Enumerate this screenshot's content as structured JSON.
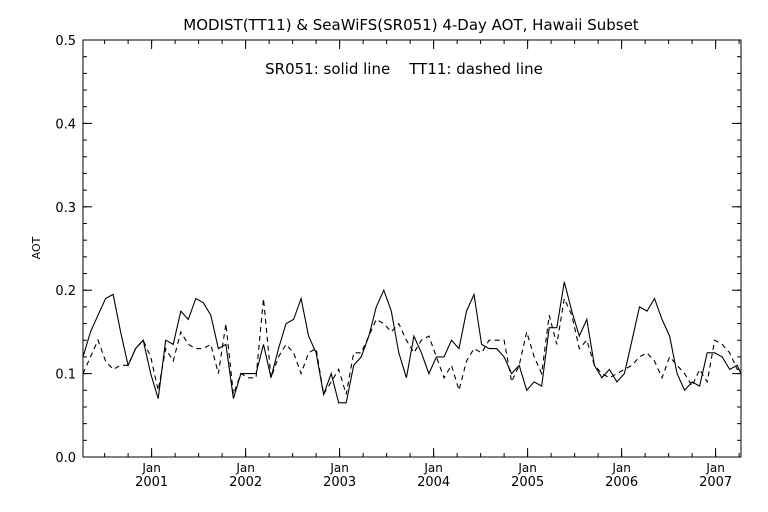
{
  "chart_data": {
    "type": "line",
    "title": "MODIST(TT11) & SeaWiFS(SR051) 4-Day AOT, Hawaii Subset",
    "annotation": "SR051: solid line    TT11: dashed line",
    "ylabel": "AOT",
    "xlabel": "",
    "ylim": [
      0.0,
      0.5
    ],
    "xlim": [
      2000.27,
      2007.27
    ],
    "yticks": [
      "0.0",
      "0.1",
      "0.2",
      "0.3",
      "0.4",
      "0.5"
    ],
    "xticks": [
      {
        "month": "Jan",
        "year": "2001"
      },
      {
        "month": "Jan",
        "year": "2002"
      },
      {
        "month": "Jan",
        "year": "2003"
      },
      {
        "month": "Jan",
        "year": "2004"
      },
      {
        "month": "Jan",
        "year": "2005"
      },
      {
        "month": "Jan",
        "year": "2006"
      },
      {
        "month": "Jan",
        "year": "2007"
      }
    ],
    "grid": false,
    "legend": "none",
    "series": [
      {
        "style": "solid",
        "color": "#000000",
        "x": [
          2000.27,
          2000.35,
          2000.43,
          2000.51,
          2000.59,
          2000.67,
          2000.75,
          2000.83,
          2000.91,
          2000.99,
          2001.07,
          2001.15,
          2001.23,
          2001.31,
          2001.39,
          2001.47,
          2001.55,
          2001.63,
          2001.71,
          2001.79,
          2001.87,
          2001.95,
          2002.03,
          2002.11,
          2002.19,
          2002.27,
          2002.35,
          2002.43,
          2002.51,
          2002.59,
          2002.67,
          2002.75,
          2002.83,
          2002.91,
          2002.99,
          2003.07,
          2003.15,
          2003.23,
          2003.31,
          2003.39,
          2003.47,
          2003.55,
          2003.63,
          2003.71,
          2003.79,
          2003.87,
          2003.95,
          2004.03,
          2004.11,
          2004.19,
          2004.27,
          2004.35,
          2004.43,
          2004.51,
          2004.59,
          2004.67,
          2004.75,
          2004.83,
          2004.91,
          2004.99,
          2005.07,
          2005.15,
          2005.23,
          2005.31,
          2005.39,
          2005.47,
          2005.55,
          2005.63,
          2005.71,
          2005.79,
          2005.87,
          2005.95,
          2006.03,
          2006.11,
          2006.19,
          2006.27,
          2006.35,
          2006.43,
          2006.51,
          2006.59,
          2006.67,
          2006.75,
          2006.83,
          2006.91,
          2006.99,
          2007.07,
          2007.15,
          2007.23,
          2007.27
        ],
        "y": [
          0.12,
          0.15,
          0.17,
          0.19,
          0.195,
          0.15,
          0.11,
          0.13,
          0.14,
          0.1,
          0.07,
          0.14,
          0.135,
          0.175,
          0.165,
          0.19,
          0.185,
          0.17,
          0.13,
          0.135,
          0.07,
          0.1,
          0.1,
          0.1,
          0.135,
          0.095,
          0.13,
          0.16,
          0.165,
          0.19,
          0.145,
          0.125,
          0.075,
          0.1,
          0.065,
          0.065,
          0.11,
          0.12,
          0.145,
          0.18,
          0.2,
          0.175,
          0.125,
          0.095,
          0.145,
          0.125,
          0.1,
          0.12,
          0.12,
          0.14,
          0.13,
          0.175,
          0.195,
          0.135,
          0.13,
          0.13,
          0.12,
          0.1,
          0.11,
          0.08,
          0.09,
          0.085,
          0.155,
          0.155,
          0.21,
          0.175,
          0.145,
          0.165,
          0.11,
          0.095,
          0.105,
          0.09,
          0.1,
          0.14,
          0.18,
          0.175,
          0.19,
          0.165,
          0.145,
          0.1,
          0.08,
          0.09,
          0.085,
          0.125,
          0.125,
          0.12,
          0.105,
          0.11,
          0.1
        ]
      },
      {
        "style": "dashed",
        "color": "#000000",
        "x": [
          2000.27,
          2000.35,
          2000.43,
          2000.51,
          2000.59,
          2000.67,
          2000.75,
          2000.83,
          2000.91,
          2000.99,
          2001.07,
          2001.15,
          2001.23,
          2001.31,
          2001.39,
          2001.47,
          2001.55,
          2001.63,
          2001.71,
          2001.79,
          2001.87,
          2001.95,
          2002.03,
          2002.11,
          2002.19,
          2002.27,
          2002.35,
          2002.43,
          2002.51,
          2002.59,
          2002.67,
          2002.75,
          2002.83,
          2002.91,
          2002.99,
          2003.07,
          2003.15,
          2003.23,
          2003.31,
          2003.39,
          2003.47,
          2003.55,
          2003.63,
          2003.71,
          2003.79,
          2003.87,
          2003.95,
          2004.03,
          2004.11,
          2004.19,
          2004.27,
          2004.35,
          2004.43,
          2004.51,
          2004.59,
          2004.67,
          2004.75,
          2004.83,
          2004.91,
          2004.99,
          2005.07,
          2005.15,
          2005.23,
          2005.31,
          2005.39,
          2005.47,
          2005.55,
          2005.63,
          2005.71,
          2005.79,
          2005.87,
          2005.95,
          2006.03,
          2006.11,
          2006.19,
          2006.27,
          2006.35,
          2006.43,
          2006.51,
          2006.59,
          2006.67,
          2006.75,
          2006.83,
          2006.91,
          2006.99,
          2007.07,
          2007.15,
          2007.23,
          2007.27
        ],
        "y": [
          0.1,
          0.12,
          0.14,
          0.115,
          0.105,
          0.11,
          0.11,
          0.13,
          0.14,
          0.12,
          0.08,
          0.13,
          0.115,
          0.15,
          0.135,
          0.13,
          0.13,
          0.135,
          0.1,
          0.16,
          0.075,
          0.1,
          0.095,
          0.095,
          0.19,
          0.095,
          0.12,
          0.135,
          0.125,
          0.1,
          0.125,
          0.13,
          0.075,
          0.09,
          0.105,
          0.075,
          0.125,
          0.125,
          0.145,
          0.165,
          0.16,
          0.15,
          0.16,
          0.14,
          0.125,
          0.14,
          0.145,
          0.12,
          0.095,
          0.11,
          0.08,
          0.115,
          0.13,
          0.125,
          0.14,
          0.14,
          0.14,
          0.09,
          0.11,
          0.15,
          0.12,
          0.1,
          0.17,
          0.135,
          0.19,
          0.17,
          0.13,
          0.14,
          0.11,
          0.1,
          0.095,
          0.1,
          0.105,
          0.11,
          0.12,
          0.125,
          0.115,
          0.095,
          0.12,
          0.11,
          0.1,
          0.085,
          0.105,
          0.09,
          0.14,
          0.135,
          0.125,
          0.105,
          0.105
        ]
      }
    ]
  }
}
